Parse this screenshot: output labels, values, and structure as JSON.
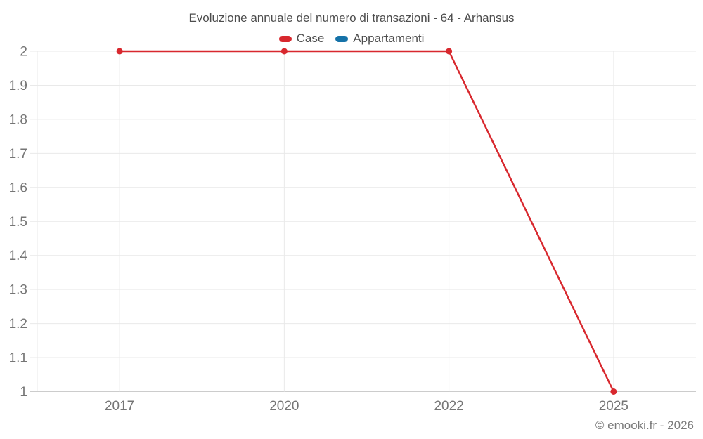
{
  "header": {
    "title": "Evoluzione annuale del numero di transazioni - 64 - Arhansus"
  },
  "legend": [
    {
      "label": "Case",
      "color": "#d8282e"
    },
    {
      "label": "Appartamenti",
      "color": "#1572a8"
    }
  ],
  "footer": {
    "credit": "© emooki.fr - 2026"
  },
  "chart_data": {
    "type": "line",
    "title": "Evoluzione annuale del numero di transazioni - 64 - Arhansus",
    "categories": [
      "2017",
      "2020",
      "2022",
      "2025"
    ],
    "series": [
      {
        "name": "Case",
        "color": "#d8282e",
        "values": [
          2,
          2,
          2,
          1
        ]
      },
      {
        "name": "Appartamenti",
        "color": "#1572a8",
        "values": []
      }
    ],
    "xlabel": "",
    "ylabel": "",
    "ylim": [
      1,
      2
    ],
    "yticks": [
      1,
      1.1,
      1.2,
      1.3,
      1.4,
      1.5,
      1.6,
      1.7,
      1.8,
      1.9,
      2
    ],
    "grid": true,
    "legend_position": "top",
    "markers": true
  }
}
